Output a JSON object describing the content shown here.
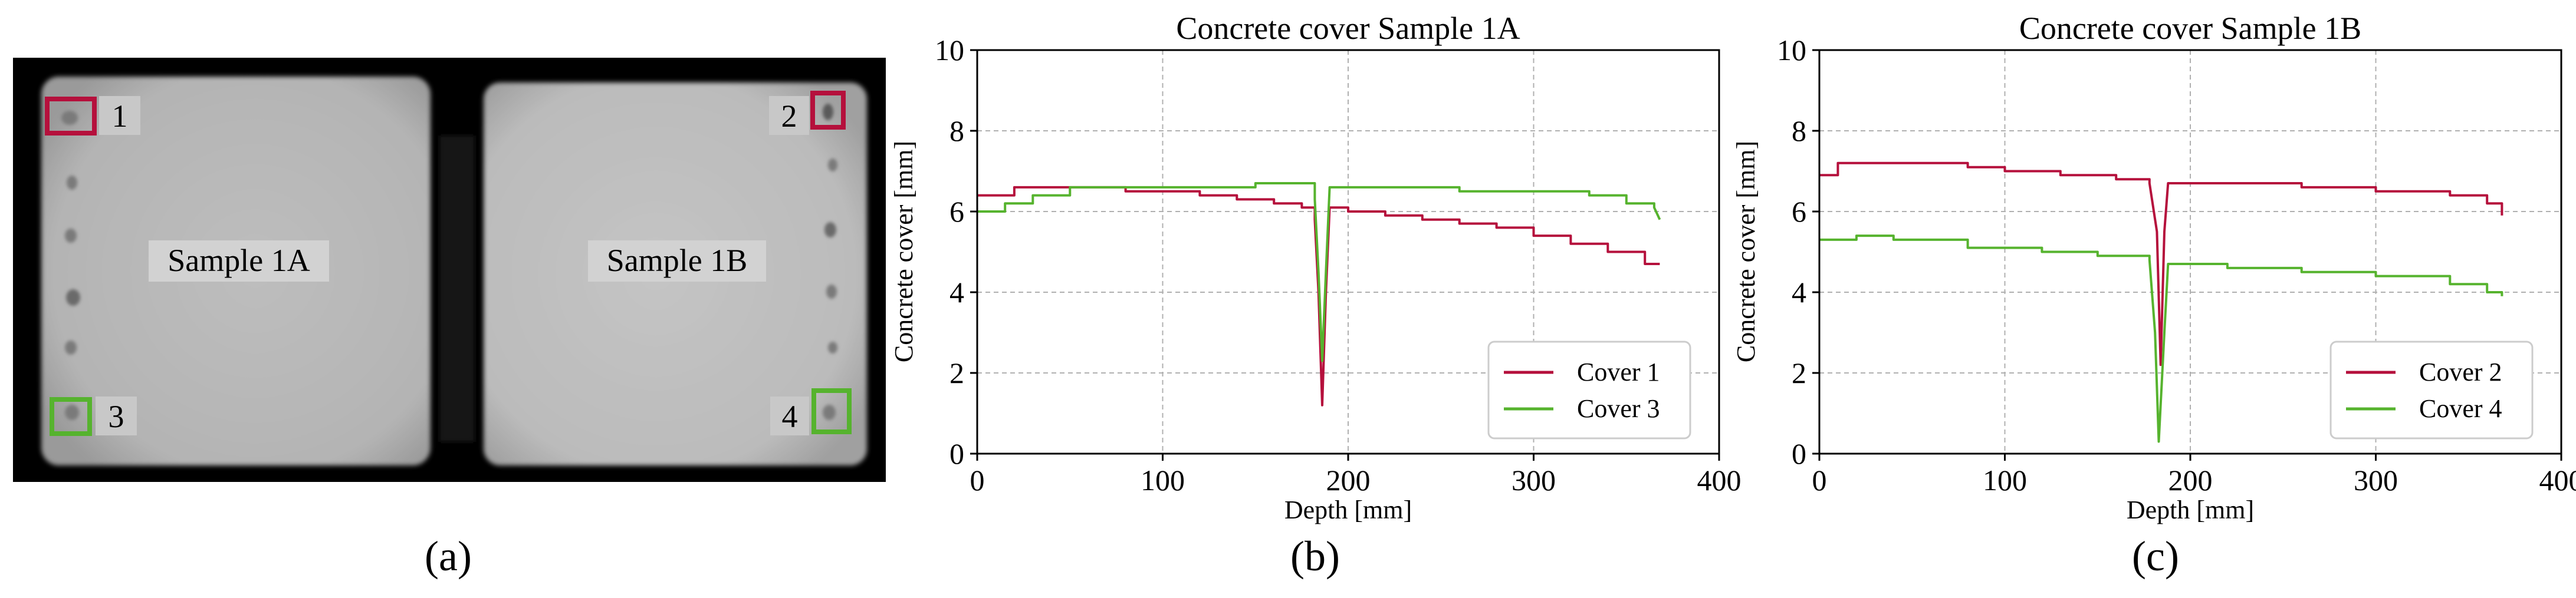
{
  "panel_a": {
    "caption": "(a)",
    "sample_labels": [
      "Sample 1A",
      "Sample 1B"
    ],
    "marker_labels": [
      "1",
      "2",
      "3",
      "4"
    ],
    "colors": {
      "cover_1_2": "#b5103c",
      "cover_3_4": "#56b32e",
      "scan_bg": "#000000"
    }
  },
  "captions": {
    "b": "(b)",
    "c": "(c)"
  },
  "chart_data": [
    {
      "type": "line",
      "title": "Concrete cover Sample 1A",
      "xlabel": "Depth [mm]",
      "ylabel": "Concrete cover [mm]",
      "xlim": [
        0,
        400
      ],
      "ylim": [
        0,
        10
      ],
      "xticks": [
        0,
        100,
        200,
        300,
        400
      ],
      "yticks": [
        0,
        2,
        4,
        6,
        8,
        10
      ],
      "grid": true,
      "legend_position": "lower-right",
      "series": [
        {
          "name": "Cover 1",
          "color": "#b5103c",
          "points": [
            [
              0,
              6.4
            ],
            [
              20,
              6.6
            ],
            [
              40,
              6.6
            ],
            [
              60,
              6.6
            ],
            [
              80,
              6.5
            ],
            [
              100,
              6.5
            ],
            [
              120,
              6.4
            ],
            [
              140,
              6.3
            ],
            [
              160,
              6.2
            ],
            [
              175,
              6.1
            ],
            [
              182,
              5.8
            ],
            [
              184,
              4.0
            ],
            [
              186,
              1.2
            ],
            [
              188,
              4.0
            ],
            [
              190,
              6.1
            ],
            [
              200,
              6.0
            ],
            [
              220,
              5.9
            ],
            [
              240,
              5.8
            ],
            [
              260,
              5.7
            ],
            [
              280,
              5.6
            ],
            [
              300,
              5.4
            ],
            [
              320,
              5.2
            ],
            [
              340,
              5.0
            ],
            [
              360,
              4.7
            ],
            [
              368,
              4.7
            ]
          ]
        },
        {
          "name": "Cover 3",
          "color": "#56b32e",
          "points": [
            [
              0,
              6.0
            ],
            [
              15,
              6.2
            ],
            [
              30,
              6.4
            ],
            [
              50,
              6.6
            ],
            [
              80,
              6.6
            ],
            [
              120,
              6.6
            ],
            [
              150,
              6.7
            ],
            [
              175,
              6.7
            ],
            [
              182,
              6.3
            ],
            [
              184,
              4.5
            ],
            [
              186,
              2.3
            ],
            [
              188,
              4.5
            ],
            [
              190,
              6.6
            ],
            [
              220,
              6.6
            ],
            [
              260,
              6.5
            ],
            [
              300,
              6.5
            ],
            [
              330,
              6.4
            ],
            [
              350,
              6.2
            ],
            [
              365,
              6.1
            ],
            [
              368,
              5.8
            ]
          ]
        }
      ]
    },
    {
      "type": "line",
      "title": "Concrete cover Sample 1B",
      "xlabel": "Depth [mm]",
      "ylabel": "Concrete cover [mm]",
      "xlim": [
        0,
        400
      ],
      "ylim": [
        0,
        10
      ],
      "xticks": [
        0,
        100,
        200,
        300,
        400
      ],
      "yticks": [
        0,
        2,
        4,
        6,
        8,
        10
      ],
      "grid": true,
      "legend_position": "lower-right",
      "series": [
        {
          "name": "Cover 2",
          "color": "#b5103c",
          "points": [
            [
              0,
              6.9
            ],
            [
              10,
              7.2
            ],
            [
              30,
              7.2
            ],
            [
              50,
              7.2
            ],
            [
              80,
              7.1
            ],
            [
              100,
              7.0
            ],
            [
              130,
              6.9
            ],
            [
              160,
              6.8
            ],
            [
              178,
              6.7
            ],
            [
              182,
              5.5
            ],
            [
              184,
              2.2
            ],
            [
              186,
              5.5
            ],
            [
              188,
              6.7
            ],
            [
              220,
              6.7
            ],
            [
              260,
              6.6
            ],
            [
              300,
              6.5
            ],
            [
              340,
              6.4
            ],
            [
              360,
              6.2
            ],
            [
              368,
              5.9
            ]
          ]
        },
        {
          "name": "Cover 4",
          "color": "#56b32e",
          "points": [
            [
              0,
              5.3
            ],
            [
              20,
              5.4
            ],
            [
              40,
              5.3
            ],
            [
              80,
              5.1
            ],
            [
              120,
              5.0
            ],
            [
              150,
              4.9
            ],
            [
              178,
              4.8
            ],
            [
              181,
              3.0
            ],
            [
              183,
              0.3
            ],
            [
              186,
              3.0
            ],
            [
              188,
              4.7
            ],
            [
              220,
              4.6
            ],
            [
              260,
              4.5
            ],
            [
              300,
              4.4
            ],
            [
              330,
              4.4
            ],
            [
              340,
              4.2
            ],
            [
              360,
              4.0
            ],
            [
              368,
              3.9
            ]
          ]
        }
      ]
    }
  ]
}
